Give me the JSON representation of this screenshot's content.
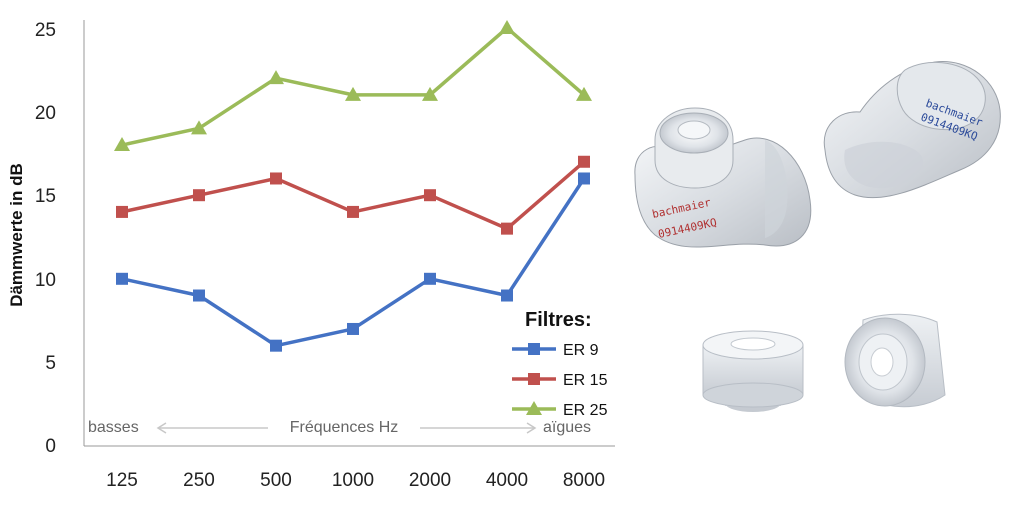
{
  "chart_data": {
    "type": "line",
    "categories": [
      "125",
      "250",
      "500",
      "1000",
      "2000",
      "4000",
      "8000"
    ],
    "series": [
      {
        "name": "ER 9",
        "color": "#4472c4",
        "marker": "square",
        "values": [
          10,
          9,
          6,
          7,
          10,
          9,
          16
        ]
      },
      {
        "name": "ER 15",
        "color": "#c0504d",
        "marker": "square",
        "values": [
          14,
          15,
          16,
          14,
          15,
          13,
          17
        ]
      },
      {
        "name": "ER 25",
        "color": "#9bbb59",
        "marker": "triangle",
        "values": [
          18,
          19,
          22,
          21,
          21,
          25,
          21
        ]
      }
    ],
    "ylabel": "Dämmwerte in dB",
    "ylim": [
      0,
      25
    ],
    "yticks": [
      "0",
      "5",
      "10",
      "15",
      "20",
      "25"
    ],
    "grid": false,
    "legend": {
      "title": "Filtres:",
      "placement": "right"
    },
    "annotations": {
      "left": "basses",
      "center": "Fréquences Hz",
      "right": "aïgues"
    }
  },
  "photos": {
    "engraving_brand": "bachmaier",
    "engraving_code": "0914409KQ"
  }
}
